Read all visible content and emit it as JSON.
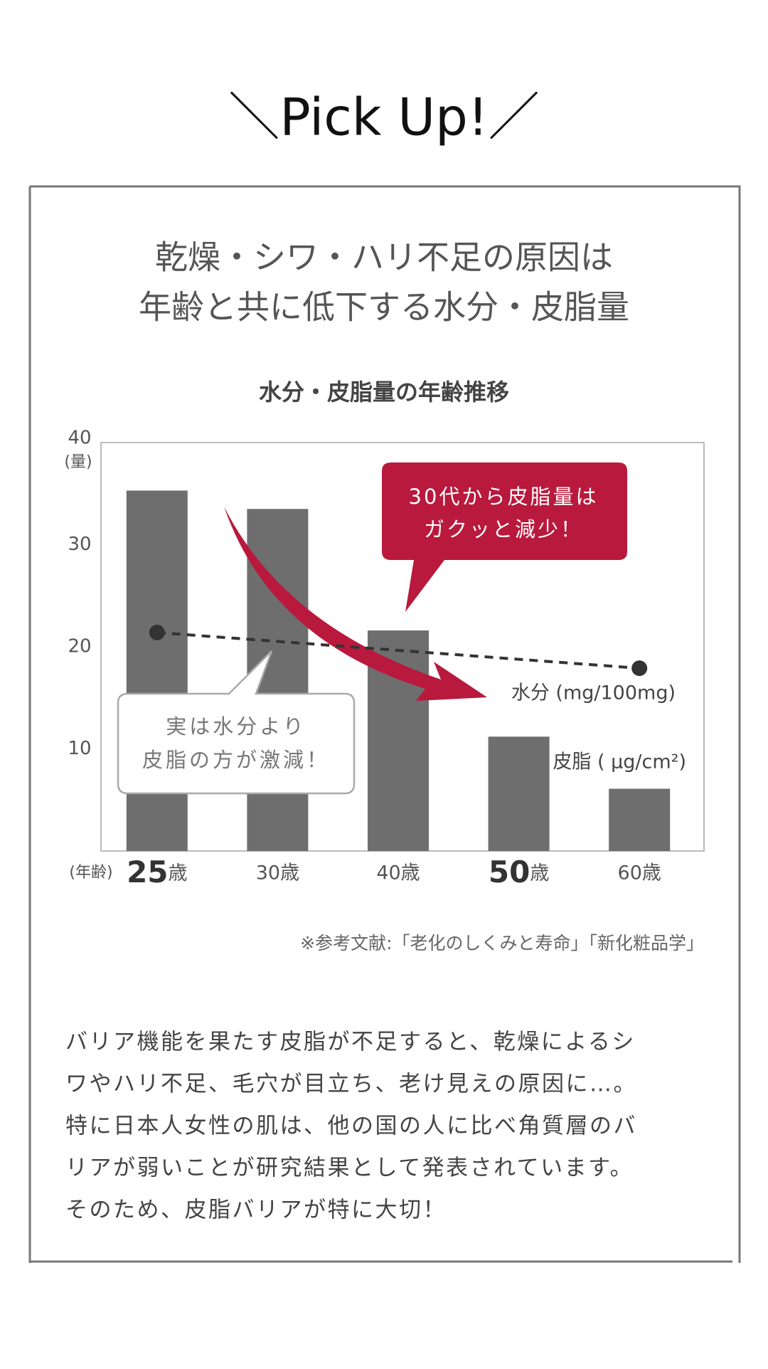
{
  "heading": "＼Pick Up!／",
  "headline": [
    "乾燥・シワ・ハリ不足の原因は",
    "年齢と共に低下する水分・皮脂量"
  ],
  "chart_data": {
    "type": "bar",
    "title": "水分・皮脂量の年齢推移",
    "y_label": "(量)",
    "x_label": "(年齢)",
    "categories": [
      "25歳",
      "30歳",
      "40歳",
      "50歳",
      "60歳"
    ],
    "emphasized": [
      true,
      false,
      false,
      true,
      false
    ],
    "ylim": [
      0,
      40
    ],
    "yticks": [
      10,
      20,
      30,
      40
    ],
    "series": [
      {
        "name": "皮脂 ( μg/cm²)",
        "color": "#6e6e6e",
        "values": [
          35.3,
          33.5,
          21.6,
          11.2,
          6.1
        ]
      },
      {
        "name": "水分 (mg/100mg)",
        "color": "#333333",
        "type": "line",
        "dashed": true,
        "values": [
          21.4,
          null,
          null,
          null,
          17.9
        ]
      }
    ],
    "annotations": [
      {
        "lines": [
          "30代から皮脂量は",
          "ガクッと減少！"
        ],
        "color": "#b8193d"
      },
      {
        "lines": [
          "実は水分より",
          "皮脂の方が激減！"
        ],
        "color": "#ffffff"
      }
    ]
  },
  "source": "※参考文献:「老化のしくみと寿命」「新化粧品学」",
  "body": [
    "バリア機能を果たす皮脂が不足すると、乾燥によるシ",
    "ワやハリ不足、毛穴が目立ち、老け見えの原因に…。",
    "特に日本人女性の肌は、他の国の人に比べ角質層のバ",
    "リアが弱いことが研究結果として発表されています。",
    "そのため、皮脂バリアが特に大切！"
  ]
}
